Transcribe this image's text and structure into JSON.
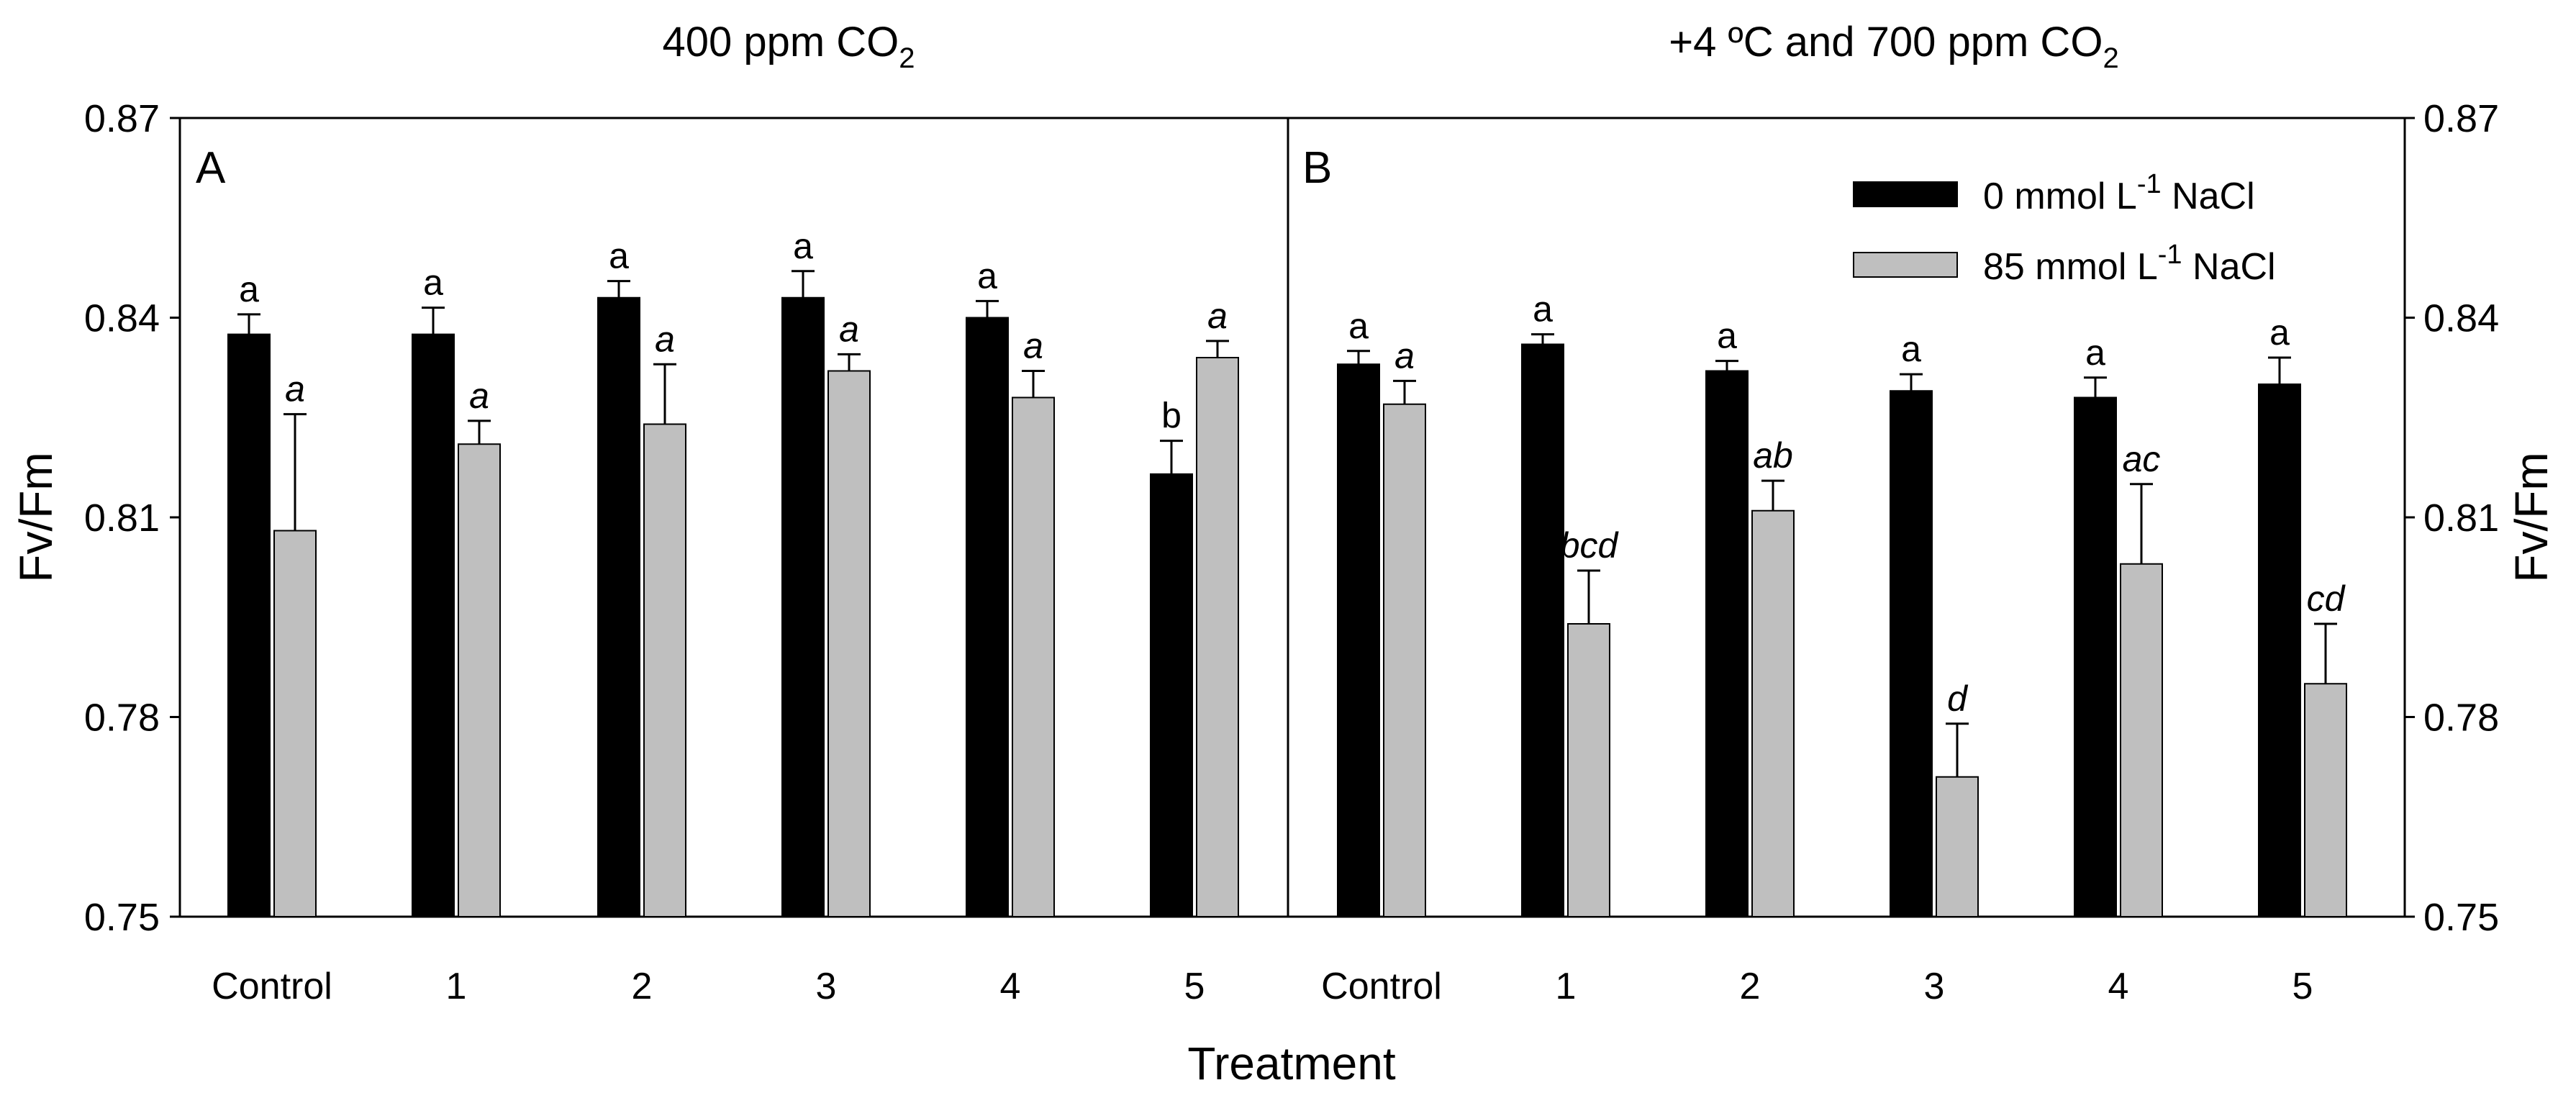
{
  "chart_data": {
    "type": "bar",
    "categories": [
      "Control",
      "1",
      "2",
      "3",
      "4",
      "5"
    ],
    "xlabel": "Treatment",
    "ylabel": "Fv/Fm",
    "ylim": [
      0.75,
      0.87
    ],
    "yticks": [
      "0.75",
      "0.78",
      "0.81",
      "0.84",
      "0.87"
    ],
    "legend": {
      "placement": "top-right of panel B",
      "entries": [
        {
          "pre": "0 mmol L",
          "sup": "-1",
          "post": " NaCl",
          "color": "#000000"
        },
        {
          "pre": "85 mmol L",
          "sup": "-1",
          "post": " NaCl",
          "color": "#bfbfbf"
        }
      ]
    },
    "panels": [
      {
        "label": "A",
        "title_pre": "400 ppm CO",
        "title_sub": "2",
        "series": [
          {
            "color": "#000000",
            "values": [
              0.8375,
              0.8375,
              0.843,
              0.843,
              0.84,
              0.8165
            ],
            "errors": [
              0.003,
              0.004,
              0.0025,
              0.004,
              0.0025,
              0.005
            ],
            "letters": [
              "a",
              "a",
              "a",
              "a",
              "a",
              "b"
            ]
          },
          {
            "color": "#bfbfbf",
            "values": [
              0.808,
              0.821,
              0.824,
              0.832,
              0.828,
              0.834
            ],
            "errors": [
              0.0175,
              0.0035,
              0.009,
              0.0025,
              0.004,
              0.0025
            ],
            "letters": [
              "a",
              "a",
              "a",
              "a",
              "a",
              "a"
            ]
          }
        ]
      },
      {
        "label": "B",
        "title_pre": "+4 ºC and 700 ppm CO",
        "title_sub": "2",
        "series": [
          {
            "color": "#000000",
            "values": [
              0.833,
              0.836,
              0.832,
              0.829,
              0.828,
              0.83
            ],
            "errors": [
              0.002,
              0.0015,
              0.0015,
              0.0025,
              0.003,
              0.004
            ],
            "letters": [
              "a",
              "a",
              "a",
              "a",
              "a",
              "a"
            ]
          },
          {
            "color": "#bfbfbf",
            "values": [
              0.827,
              0.794,
              0.811,
              0.771,
              0.803,
              0.785
            ],
            "errors": [
              0.0035,
              0.008,
              0.0045,
              0.008,
              0.012,
              0.009
            ],
            "letters": [
              "a",
              "bcd",
              "ab",
              "d",
              "ac",
              "cd"
            ]
          }
        ]
      }
    ]
  }
}
